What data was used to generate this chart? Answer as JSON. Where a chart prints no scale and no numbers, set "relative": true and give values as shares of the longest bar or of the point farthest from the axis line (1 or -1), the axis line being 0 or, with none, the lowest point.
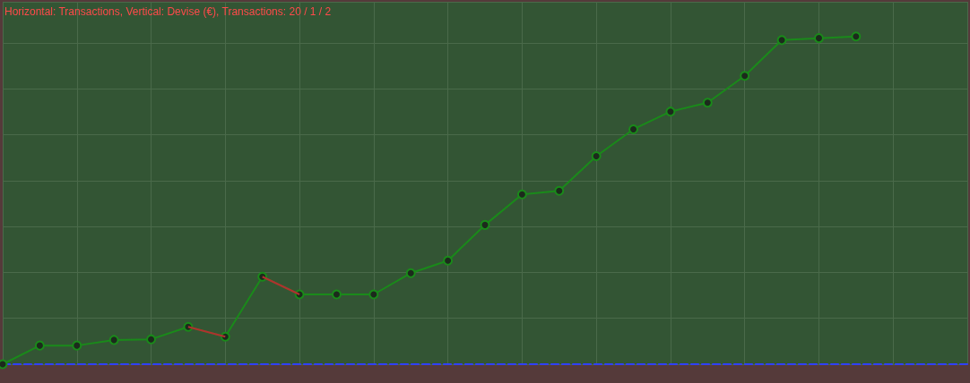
{
  "chart_data": {
    "type": "line",
    "title": "Horizontal: Transactions, Vertical: Devise (€), Transactions: 20 / 1 / 2",
    "relative": true,
    "categories": [
      null,
      null,
      null,
      null,
      null,
      null,
      null,
      null,
      null,
      null,
      null,
      null,
      null,
      null,
      null,
      null,
      null,
      null,
      null,
      null,
      null,
      null,
      null,
      null,
      null,
      null,
      null
    ],
    "series": [
      {
        "color": "#1a8a1a",
        "values": [
          0,
          0.057,
          0.057,
          0.074,
          0.076,
          0.114,
          0.084,
          0.267,
          0.213,
          0.213,
          0.213,
          0.278,
          0.316,
          0.425,
          0.518,
          0.529,
          0.635,
          0.717,
          0.771,
          0.798,
          0.88,
          0.989,
          0.995,
          1,
          null,
          null,
          null
        ]
      },
      {
        "color": "#b03030",
        "marker": "none",
        "values": [
          null,
          null,
          null,
          null,
          null,
          0.114,
          0.084,
          null,
          null,
          null,
          null,
          null,
          null,
          null,
          null,
          null,
          null,
          null,
          null,
          null,
          null,
          null,
          null,
          null,
          null,
          null,
          null
        ]
      },
      {
        "color": "#b03030",
        "marker": "none",
        "values": [
          null,
          null,
          null,
          null,
          null,
          null,
          null,
          0.267,
          0.213,
          null,
          null,
          null,
          null,
          null,
          null,
          null,
          null,
          null,
          null,
          null,
          null,
          null,
          null,
          null,
          null,
          null,
          null
        ]
      }
    ],
    "grid": true,
    "marker": "circle"
  }
}
